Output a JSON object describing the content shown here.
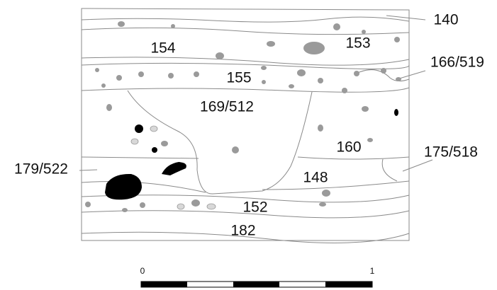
{
  "labels": [
    "140",
    "154",
    "153",
    "166/519",
    "155",
    "169/512",
    "160",
    "175/518",
    "179/522",
    "148",
    "152",
    "182"
  ],
  "scale": {
    "start": "0",
    "end": "1"
  }
}
